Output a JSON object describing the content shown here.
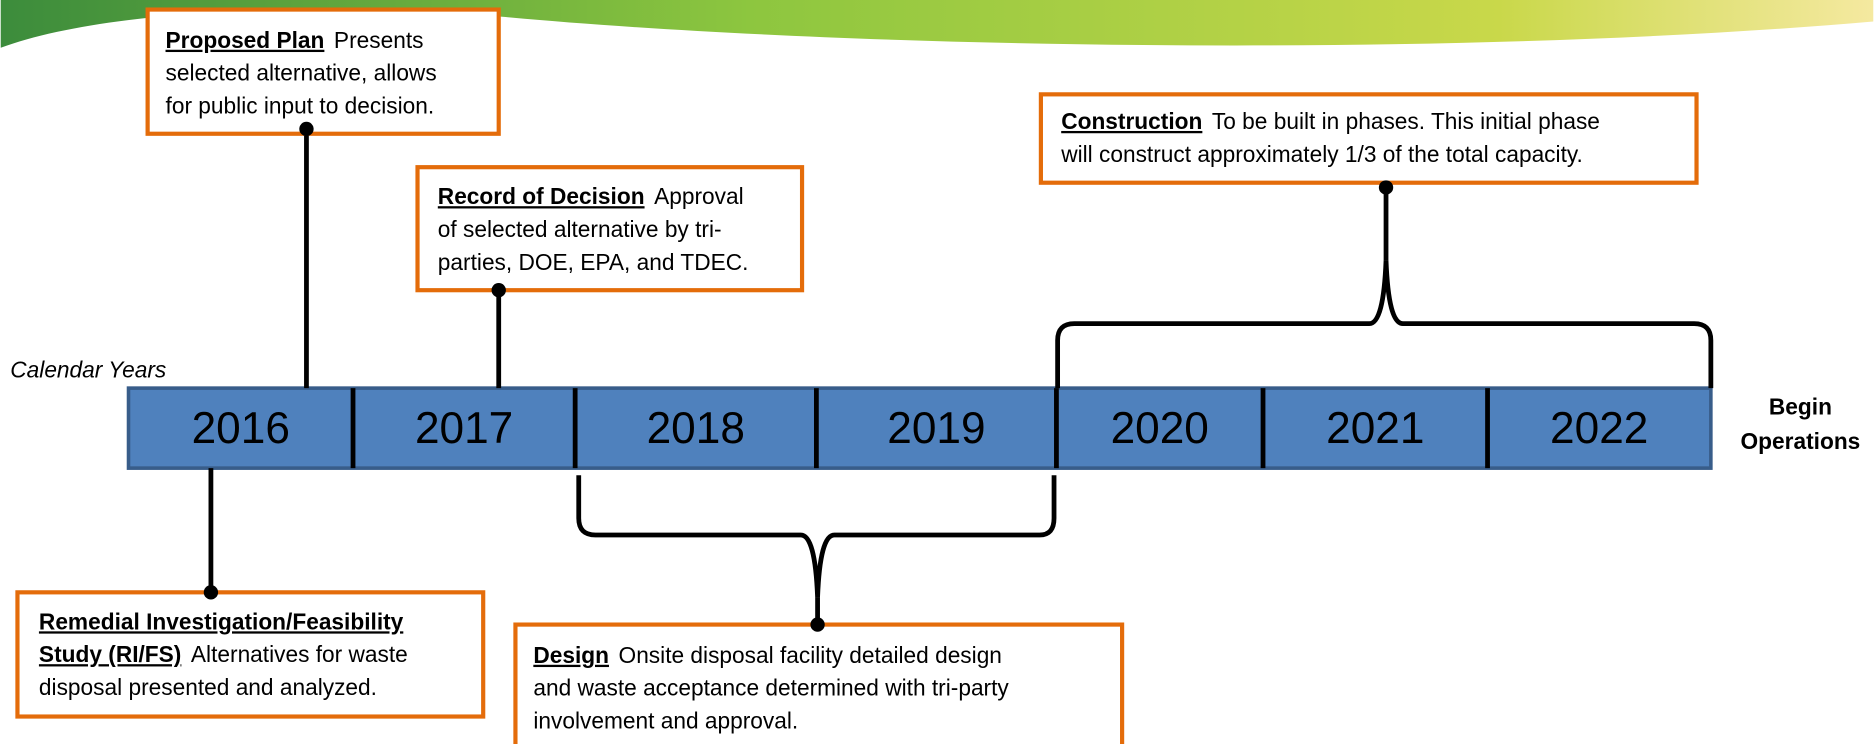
{
  "axis_label": "Calendar Years",
  "years": [
    "2016",
    "2017",
    "2018",
    "2019",
    "2020",
    "2021",
    "2022"
  ],
  "end_label": [
    "Begin",
    "Operations"
  ],
  "boxes": [
    {
      "lines": [
        {
          "title": "Proposed Plan",
          "text": "Presents"
        },
        {
          "text": "selected alternative, allows"
        },
        {
          "text": "for public input to decision."
        }
      ]
    },
    {
      "lines": [
        {
          "title": "Record of Decision",
          "text": "Approval"
        },
        {
          "text": "of selected alternative by tri-"
        },
        {
          "text": "parties, DOE, EPA, and TDEC."
        }
      ]
    },
    {
      "lines": [
        {
          "title": "Construction",
          "text": "To be built in phases. This initial phase"
        },
        {
          "text": "will construct approximately 1/3 of the total capacity."
        }
      ]
    },
    {
      "lines": [
        {
          "title": "Remedial Investigation/Feasibility"
        },
        {
          "title": "Study (RI/FS)",
          "text": "Alternatives for waste"
        },
        {
          "text": "disposal presented and analyzed."
        }
      ]
    },
    {
      "lines": [
        {
          "title": "Design",
          "text": "Onsite disposal facility detailed design"
        },
        {
          "text": "and waste acceptance determined with tri-party"
        },
        {
          "text": "involvement and approval."
        }
      ]
    }
  ]
}
